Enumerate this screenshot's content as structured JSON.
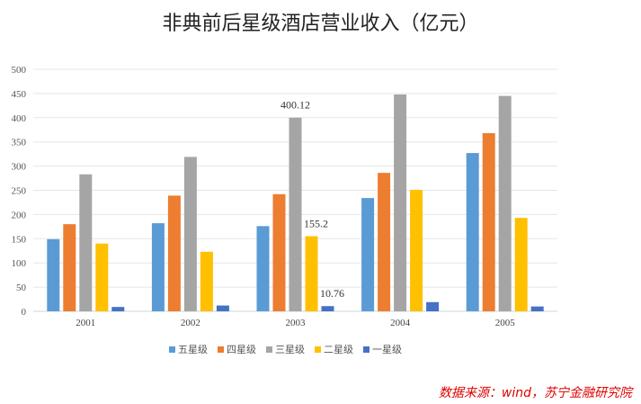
{
  "chart_data": {
    "type": "bar",
    "title": "非典前后星级酒店营业收入（亿元）",
    "xlabel": "",
    "ylabel": "",
    "ylim": [
      0,
      500
    ],
    "yticks": [
      0,
      50,
      100,
      150,
      200,
      250,
      300,
      350,
      400,
      450,
      500
    ],
    "grid": true,
    "legend_position": "bottom",
    "categories": [
      "2001",
      "2002",
      "2003",
      "2004",
      "2005"
    ],
    "series": [
      {
        "name": "五星级",
        "color": "#5b9bd5",
        "values": [
          149,
          182,
          176,
          234,
          327
        ]
      },
      {
        "name": "四星级",
        "color": "#ed7d31",
        "values": [
          180,
          239,
          242,
          286,
          368
        ]
      },
      {
        "name": "三星级",
        "color": "#a5a5a5",
        "values": [
          283,
          319,
          400.12,
          448,
          445
        ]
      },
      {
        "name": "二星级",
        "color": "#ffc000",
        "values": [
          140,
          123,
          155.2,
          251,
          193
        ]
      },
      {
        "name": "一星级",
        "color": "#4472c4",
        "values": [
          9,
          12,
          10.76,
          19,
          10
        ]
      }
    ],
    "data_labels": [
      {
        "series": 2,
        "category": 2,
        "text": "400.12"
      },
      {
        "series": 3,
        "category": 2,
        "text": "155.2"
      },
      {
        "series": 4,
        "category": 2,
        "text": "10.76"
      }
    ]
  },
  "source": "数据来源：wind，苏宁金融研究院"
}
